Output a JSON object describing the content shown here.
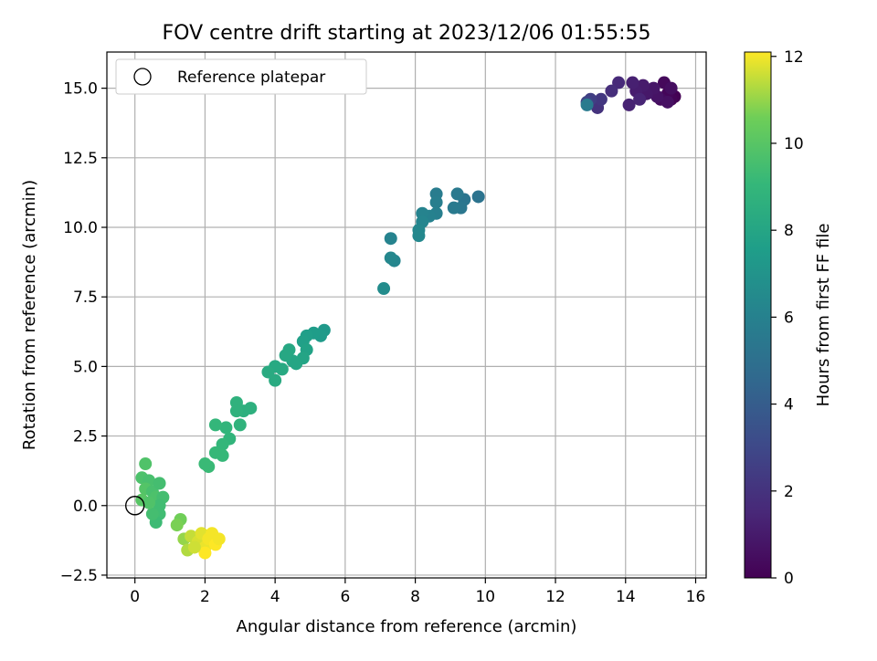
{
  "chart_data": {
    "type": "scatter",
    "title": "FOV centre drift starting at 2023/12/06 01:55:55",
    "xlabel": "Angular distance from reference (arcmin)",
    "ylabel": "Rotation from reference (arcmin)",
    "xlim": [
      -0.8,
      16.3
    ],
    "ylim": [
      -2.6,
      16.3
    ],
    "x_ticks": [
      0,
      2,
      4,
      6,
      8,
      10,
      12,
      14,
      16
    ],
    "x_tick_labels": [
      "0",
      "2",
      "4",
      "6",
      "8",
      "10",
      "12",
      "14",
      "16"
    ],
    "y_ticks": [
      -2.5,
      0.0,
      2.5,
      5.0,
      7.5,
      10.0,
      12.5,
      15.0
    ],
    "y_tick_labels": [
      "−2.5",
      "0.0",
      "2.5",
      "5.0",
      "7.5",
      "10.0",
      "12.5",
      "15.0"
    ],
    "grid": true,
    "legend": {
      "position": "top-left",
      "entries": [
        {
          "label": "Reference platepar",
          "marker": "open-circle"
        }
      ]
    },
    "reference_point": {
      "x": 0,
      "y": 0
    },
    "colorbar": {
      "label": "Hours from first FF file",
      "colormap": "viridis",
      "min": 0,
      "max": 12.1,
      "ticks": [
        0,
        2,
        4,
        6,
        8,
        10,
        12
      ],
      "tick_labels": [
        "0",
        "2",
        "4",
        "6",
        "8",
        "10",
        "12"
      ]
    },
    "points": [
      {
        "x": 15.4,
        "y": 14.7,
        "t": 0.0
      },
      {
        "x": 15.3,
        "y": 14.6,
        "t": 0.1
      },
      {
        "x": 15.2,
        "y": 14.8,
        "t": 0.2
      },
      {
        "x": 15.1,
        "y": 15.2,
        "t": 0.3
      },
      {
        "x": 15.0,
        "y": 14.6,
        "t": 0.4
      },
      {
        "x": 15.3,
        "y": 15.0,
        "t": 0.5
      },
      {
        "x": 15.2,
        "y": 14.5,
        "t": 0.6
      },
      {
        "x": 14.9,
        "y": 14.7,
        "t": 0.7
      },
      {
        "x": 14.8,
        "y": 15.0,
        "t": 0.8
      },
      {
        "x": 14.6,
        "y": 14.8,
        "t": 0.9
      },
      {
        "x": 14.5,
        "y": 15.1,
        "t": 1.0
      },
      {
        "x": 14.3,
        "y": 14.9,
        "t": 1.1
      },
      {
        "x": 14.2,
        "y": 15.2,
        "t": 1.2
      },
      {
        "x": 14.1,
        "y": 14.4,
        "t": 1.3
      },
      {
        "x": 14.4,
        "y": 14.6,
        "t": 1.4
      },
      {
        "x": 13.8,
        "y": 15.2,
        "t": 1.6
      },
      {
        "x": 13.6,
        "y": 14.9,
        "t": 1.8
      },
      {
        "x": 13.2,
        "y": 14.3,
        "t": 2.0
      },
      {
        "x": 13.3,
        "y": 14.6,
        "t": 2.2
      },
      {
        "x": 13.0,
        "y": 14.6,
        "t": 2.5
      },
      {
        "x": 12.9,
        "y": 14.5,
        "t": 2.8
      },
      {
        "x": 12.9,
        "y": 14.4,
        "t": 5.6
      },
      {
        "x": 9.8,
        "y": 11.1,
        "t": 5.2
      },
      {
        "x": 9.4,
        "y": 11.0,
        "t": 5.3
      },
      {
        "x": 9.3,
        "y": 10.7,
        "t": 5.4
      },
      {
        "x": 9.2,
        "y": 11.2,
        "t": 5.5
      },
      {
        "x": 9.1,
        "y": 10.7,
        "t": 5.6
      },
      {
        "x": 8.6,
        "y": 11.2,
        "t": 5.7
      },
      {
        "x": 8.6,
        "y": 10.9,
        "t": 5.8
      },
      {
        "x": 8.6,
        "y": 10.5,
        "t": 5.9
      },
      {
        "x": 8.4,
        "y": 10.4,
        "t": 6.0
      },
      {
        "x": 8.2,
        "y": 10.5,
        "t": 6.1
      },
      {
        "x": 8.2,
        "y": 10.2,
        "t": 6.2
      },
      {
        "x": 8.1,
        "y": 9.9,
        "t": 6.3
      },
      {
        "x": 8.1,
        "y": 9.7,
        "t": 6.4
      },
      {
        "x": 7.4,
        "y": 8.8,
        "t": 6.2
      },
      {
        "x": 7.3,
        "y": 8.9,
        "t": 6.3
      },
      {
        "x": 7.3,
        "y": 9.6,
        "t": 6.1
      },
      {
        "x": 7.1,
        "y": 7.8,
        "t": 6.6
      },
      {
        "x": 5.4,
        "y": 6.3,
        "t": 7.3
      },
      {
        "x": 5.3,
        "y": 6.1,
        "t": 7.4
      },
      {
        "x": 5.1,
        "y": 6.2,
        "t": 7.5
      },
      {
        "x": 4.9,
        "y": 6.1,
        "t": 7.6
      },
      {
        "x": 4.8,
        "y": 5.9,
        "t": 7.7
      },
      {
        "x": 4.9,
        "y": 5.6,
        "t": 7.8
      },
      {
        "x": 4.8,
        "y": 5.3,
        "t": 7.9
      },
      {
        "x": 4.6,
        "y": 5.1,
        "t": 8.0
      },
      {
        "x": 4.5,
        "y": 5.2,
        "t": 8.0
      },
      {
        "x": 4.4,
        "y": 5.6,
        "t": 8.1
      },
      {
        "x": 4.3,
        "y": 5.4,
        "t": 8.1
      },
      {
        "x": 4.2,
        "y": 4.9,
        "t": 8.2
      },
      {
        "x": 4.0,
        "y": 5.0,
        "t": 8.2
      },
      {
        "x": 4.0,
        "y": 4.5,
        "t": 8.3
      },
      {
        "x": 3.8,
        "y": 4.8,
        "t": 8.3
      },
      {
        "x": 3.3,
        "y": 3.5,
        "t": 8.6
      },
      {
        "x": 3.1,
        "y": 3.4,
        "t": 8.6
      },
      {
        "x": 2.9,
        "y": 3.7,
        "t": 8.7
      },
      {
        "x": 2.9,
        "y": 3.4,
        "t": 8.7
      },
      {
        "x": 3.0,
        "y": 2.9,
        "t": 8.8
      },
      {
        "x": 2.7,
        "y": 2.4,
        "t": 8.9
      },
      {
        "x": 2.6,
        "y": 2.8,
        "t": 8.9
      },
      {
        "x": 2.5,
        "y": 2.2,
        "t": 9.0
      },
      {
        "x": 2.3,
        "y": 2.9,
        "t": 9.0
      },
      {
        "x": 2.3,
        "y": 1.9,
        "t": 9.1
      },
      {
        "x": 2.5,
        "y": 1.8,
        "t": 9.1
      },
      {
        "x": 2.1,
        "y": 1.4,
        "t": 9.2
      },
      {
        "x": 2.0,
        "y": 1.5,
        "t": 9.2
      },
      {
        "x": 0.3,
        "y": 1.5,
        "t": 9.8
      },
      {
        "x": 0.2,
        "y": 1.0,
        "t": 9.7
      },
      {
        "x": 0.4,
        "y": 0.9,
        "t": 9.6
      },
      {
        "x": 0.3,
        "y": 0.6,
        "t": 9.9
      },
      {
        "x": 0.5,
        "y": 0.5,
        "t": 9.6
      },
      {
        "x": 0.7,
        "y": 0.8,
        "t": 9.5
      },
      {
        "x": 0.6,
        "y": 0.3,
        "t": 9.7
      },
      {
        "x": 0.8,
        "y": 0.3,
        "t": 9.5
      },
      {
        "x": 0.7,
        "y": 0.0,
        "t": 9.4
      },
      {
        "x": 0.7,
        "y": -0.3,
        "t": 9.4
      },
      {
        "x": 0.6,
        "y": -0.6,
        "t": 9.3
      },
      {
        "x": 0.5,
        "y": -0.3,
        "t": 9.5
      },
      {
        "x": 0.2,
        "y": 0.2,
        "t": 10.0
      },
      {
        "x": 0.4,
        "y": 0.1,
        "t": 9.8
      },
      {
        "x": 1.3,
        "y": -0.5,
        "t": 10.6
      },
      {
        "x": 1.2,
        "y": -0.7,
        "t": 10.7
      },
      {
        "x": 1.4,
        "y": -1.2,
        "t": 11.0
      },
      {
        "x": 1.5,
        "y": -1.6,
        "t": 11.3
      },
      {
        "x": 1.6,
        "y": -1.1,
        "t": 11.5
      },
      {
        "x": 1.8,
        "y": -1.3,
        "t": 11.7
      },
      {
        "x": 1.9,
        "y": -1.0,
        "t": 11.8
      },
      {
        "x": 2.0,
        "y": -1.5,
        "t": 11.9
      },
      {
        "x": 2.1,
        "y": -1.2,
        "t": 12.0
      },
      {
        "x": 2.2,
        "y": -1.0,
        "t": 12.0
      },
      {
        "x": 2.3,
        "y": -1.4,
        "t": 12.1
      },
      {
        "x": 2.0,
        "y": -1.7,
        "t": 12.1
      },
      {
        "x": 1.7,
        "y": -1.5,
        "t": 11.6
      },
      {
        "x": 2.4,
        "y": -1.2,
        "t": 12.0
      }
    ]
  }
}
